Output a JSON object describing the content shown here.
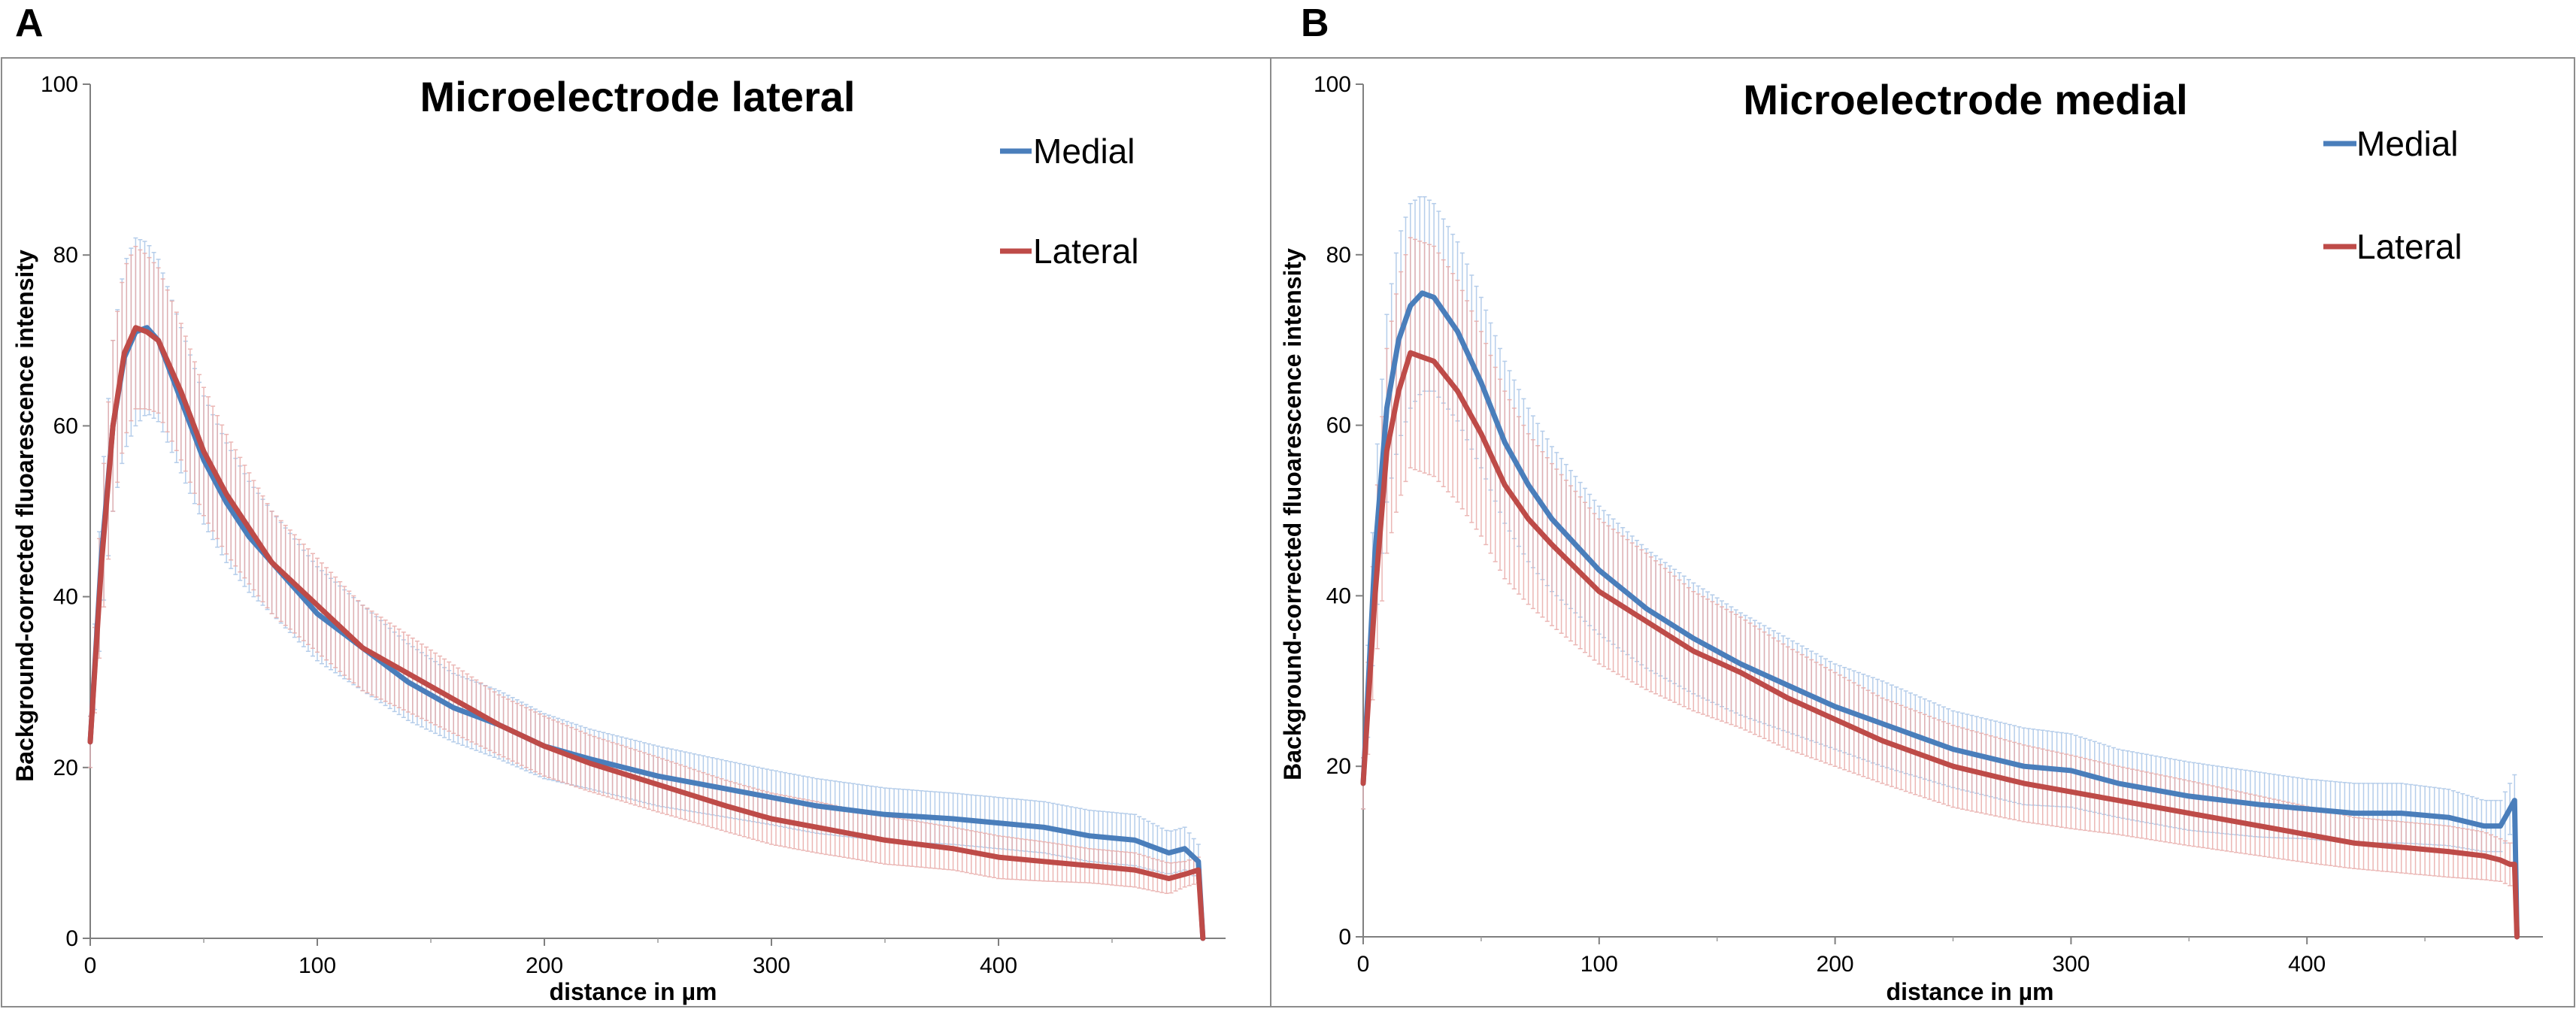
{
  "panels": [
    {
      "letter": "A",
      "chart_data": {
        "type": "line",
        "title": "Microelectrode lateral",
        "xlabel": "distance in µm",
        "ylabel": "Background-corrected fluoarescence intensity",
        "xlim": [
          0,
          500
        ],
        "ylim": [
          0,
          100
        ],
        "xticks": [
          0,
          100,
          200,
          300,
          400
        ],
        "yticks": [
          0,
          20,
          40,
          60,
          80,
          100
        ],
        "legend_position": "top-right",
        "series": [
          {
            "name": "Medial",
            "color": "#4a7ebb",
            "error_color": "#a8c4e6",
            "x": [
              0,
              5,
              10,
              15,
              20,
              25,
              30,
              40,
              50,
              60,
              70,
              80,
              100,
              120,
              140,
              160,
              180,
              200,
              220,
              250,
              280,
              300,
              320,
              350,
              380,
              400,
              420,
              440,
              460,
              475,
              482,
              488,
              490
            ],
            "y": [
              23,
              45,
              60,
              68,
              71,
              71.5,
              70,
              63,
              56,
              51,
              47,
              44,
              38,
              34,
              30,
              27,
              25,
              22.5,
              21,
              19,
              17.5,
              16.5,
              15.5,
              14.5,
              14,
              13.5,
              13,
              12,
              11.5,
              10,
              10.5,
              9,
              0
            ],
            "error": [
              3,
              8,
              10,
              11,
              11,
              10,
              9.5,
              8.5,
              7.5,
              7,
              6.5,
              6,
              5.5,
              5,
              4.5,
              4,
              4,
              3.8,
              3.5,
              3.5,
              3.3,
              3.2,
              3.2,
              3.1,
              3,
              3,
              3,
              3,
              3,
              2.5,
              2.5,
              2,
              0
            ]
          },
          {
            "name": "Lateral",
            "color": "#be4b48",
            "error_color": "#e8aaa8",
            "x": [
              0,
              5,
              10,
              15,
              20,
              25,
              30,
              40,
              50,
              60,
              70,
              80,
              100,
              120,
              140,
              160,
              180,
              200,
              220,
              250,
              280,
              300,
              320,
              350,
              380,
              400,
              420,
              440,
              460,
              475,
              482,
              488,
              490
            ],
            "y": [
              23,
              44,
              60,
              68.5,
              71.5,
              71,
              70,
              64,
              57,
              52,
              48,
              44,
              39,
              34,
              31,
              28,
              25,
              22.5,
              20.5,
              18,
              15.5,
              14,
              13,
              11.5,
              10.5,
              9.5,
              9,
              8.5,
              8,
              7,
              7.5,
              8,
              0
            ],
            "error": [
              3,
              8,
              10,
              10,
              9.5,
              9,
              8.5,
              8,
              7.5,
              7,
              6.5,
              6,
              5.5,
              5,
              4.5,
              4,
              3.5,
              3.5,
              3.3,
              3.2,
              3,
              3,
              3,
              2.8,
              2.5,
              2.5,
              2.3,
              2,
              2,
              1.8,
              1.5,
              1.5,
              0
            ]
          }
        ]
      }
    },
    {
      "letter": "B",
      "chart_data": {
        "type": "line",
        "title": "Microelectrode medial",
        "xlabel": "distance in µm",
        "ylabel": "Background-corrected fluoarescence intensity",
        "xlim": [
          0,
          500
        ],
        "ylim": [
          0,
          100
        ],
        "xticks": [
          0,
          100,
          200,
          300,
          400
        ],
        "yticks": [
          0,
          20,
          40,
          60,
          80,
          100
        ],
        "legend_position": "top-right",
        "series": [
          {
            "name": "Medial",
            "color": "#4a7ebb",
            "error_color": "#a8c4e6",
            "x": [
              0,
              5,
              10,
              15,
              20,
              25,
              30,
              40,
              50,
              60,
              70,
              80,
              100,
              120,
              140,
              160,
              180,
              200,
              220,
              250,
              280,
              300,
              320,
              350,
              380,
              400,
              420,
              440,
              460,
              475,
              482,
              486,
              488,
              489
            ],
            "y": [
              18,
              45,
              62,
              70,
              74,
              75.5,
              75,
              71,
              65,
              58,
              53,
              49,
              43,
              38.5,
              35,
              32,
              29.5,
              27,
              25,
              22,
              20,
              19.5,
              18,
              16.5,
              15.5,
              15,
              14.5,
              14.5,
              14,
              13,
              13,
              15,
              16,
              0
            ],
            "error": [
              3,
              9,
              11,
              12,
              12,
              11.5,
              11,
              10.5,
              10,
              9.5,
              9,
              8.5,
              7.5,
              7,
              6.5,
              6,
              5.5,
              5,
              5,
              4.5,
              4.5,
              4.3,
              4,
              4,
              3.8,
              3.5,
              3.5,
              3.5,
              3.3,
              3,
              3,
              3,
              3,
              0
            ]
          },
          {
            "name": "Lateral",
            "color": "#be4b48",
            "error_color": "#e8aaa8",
            "x": [
              0,
              5,
              10,
              15,
              20,
              25,
              30,
              40,
              50,
              60,
              70,
              80,
              100,
              120,
              140,
              160,
              180,
              200,
              220,
              250,
              280,
              300,
              320,
              350,
              380,
              400,
              420,
              440,
              460,
              475,
              482,
              486,
              488,
              489
            ],
            "y": [
              18,
              40,
              57,
              64,
              68.5,
              68,
              67.5,
              64,
              59,
              53,
              49,
              46,
              40.5,
              37,
              33.5,
              31,
              28,
              25.5,
              23,
              20,
              18,
              17,
              16,
              14.5,
              13,
              12,
              11,
              10.5,
              10,
              9.5,
              9,
              8.5,
              8.5,
              0
            ],
            "error": [
              3,
              9,
              12,
              13,
              13.5,
              13.5,
              13.5,
              13,
              12,
              11,
              10,
              9.5,
              8.5,
              8,
              7,
              6.5,
              6,
              5.5,
              5,
              4.8,
              4.5,
              4.3,
              4,
              3.8,
              3.5,
              3.3,
              3,
              3,
              3,
              2.8,
              2.5,
              2.5,
              2.5,
              0
            ]
          }
        ]
      }
    }
  ]
}
